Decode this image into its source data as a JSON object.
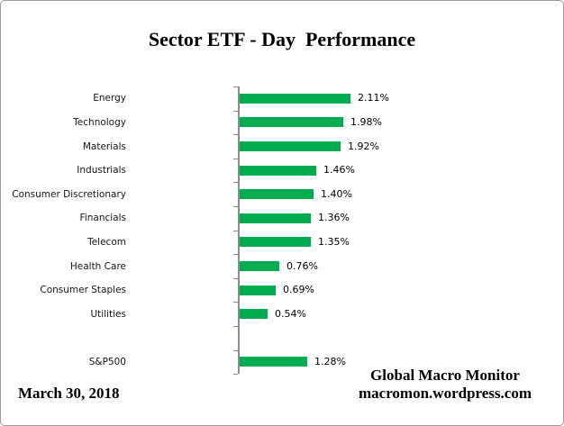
{
  "window": {
    "background": "#FFFFFF",
    "border_color": "#9B9B9B"
  },
  "title": "Sector ETF - Day  Performance",
  "footer": {
    "date": "March 30, 2018",
    "source_line1": "Global Macro Monitor",
    "source_line2": "macromon.wordpress.com"
  },
  "chart_data": {
    "type": "bar",
    "orientation": "horizontal",
    "title": "Sector ETF - Day  Performance",
    "categories": [
      "Energy",
      "Technology",
      "Materials",
      "Industrials",
      "Consumer Discretionary",
      "Financials",
      "Telecom",
      "Health Care",
      "Consumer Staples",
      "Utilities",
      "S&P500"
    ],
    "values": [
      2.11,
      1.98,
      1.92,
      1.46,
      1.4,
      1.36,
      1.35,
      0.76,
      0.69,
      0.54,
      1.28
    ],
    "value_labels": [
      "2.11%",
      "1.98%",
      "1.92%",
      "1.46%",
      "1.40%",
      "1.36%",
      "1.35%",
      "0.76%",
      "0.69%",
      "0.54%",
      "1.28%"
    ],
    "bar_color": "#00AC50",
    "axis_color": "#8C8C8C",
    "data_labels": true,
    "grid": false,
    "legend": false,
    "xlim": [
      0,
      2.2
    ],
    "gap_after_index": 9,
    "value_axis_hidden": true
  }
}
